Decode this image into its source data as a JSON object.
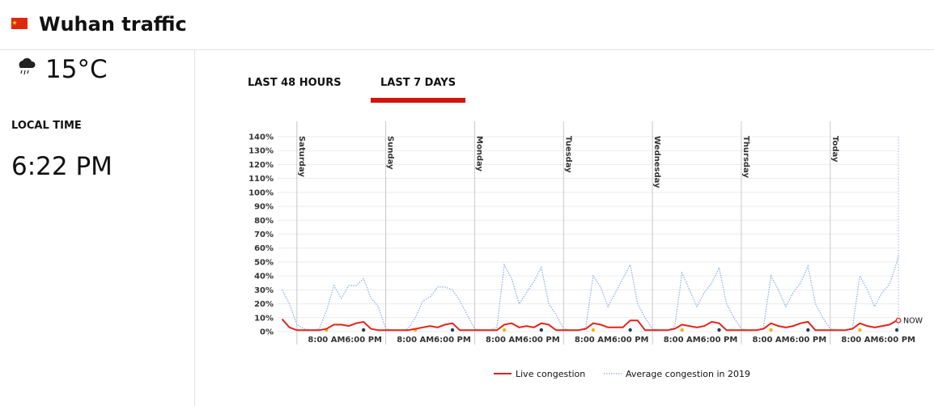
{
  "header": {
    "title": "Wuhan traffic"
  },
  "weather": {
    "temperature": "15°C"
  },
  "local_time": {
    "label": "LOCAL TIME",
    "value": "6:22 PM"
  },
  "tabs": [
    "LAST 48 HOURS",
    "LAST 7 DAYS"
  ],
  "chart_data": {
    "type": "line",
    "x": [
      -4,
      -2,
      0,
      2,
      4,
      6,
      8,
      10,
      12,
      14,
      16,
      18,
      20,
      22,
      24,
      26,
      28,
      30,
      32,
      34,
      36,
      38,
      40,
      42,
      44,
      46,
      48,
      50,
      52,
      54,
      56,
      58,
      60,
      62,
      64,
      66,
      68,
      70,
      72,
      74,
      76,
      78,
      80,
      82,
      84,
      86,
      88,
      90,
      92,
      94,
      96,
      98,
      100,
      102,
      104,
      106,
      108,
      110,
      112,
      114,
      116,
      118,
      120,
      122,
      124,
      126,
      128,
      130,
      132,
      134,
      136,
      138,
      140,
      142,
      144,
      146,
      148,
      150,
      152,
      154,
      156,
      158,
      160,
      162,
      162.4
    ],
    "series": [
      {
        "name": "Live congestion",
        "color": "#e2231a",
        "style": "solid",
        "values": [
          9,
          3,
          1,
          1,
          1,
          1,
          2,
          5,
          5,
          4,
          6,
          7,
          2,
          1,
          1,
          1,
          1,
          1,
          2,
          3,
          4,
          3,
          5,
          6,
          1,
          1,
          1,
          1,
          1,
          1,
          5,
          6,
          3,
          4,
          3,
          6,
          5,
          1,
          1,
          1,
          1,
          2,
          6,
          5,
          3,
          3,
          3,
          8,
          8,
          1,
          1,
          1,
          1,
          2,
          5,
          4,
          3,
          4,
          7,
          6,
          1,
          1,
          1,
          1,
          1,
          2,
          6,
          4,
          3,
          4,
          6,
          7,
          1,
          1,
          1,
          1,
          1,
          2,
          6,
          4,
          3,
          4,
          5,
          8,
          8
        ]
      },
      {
        "name": "Average congestion in 2019",
        "color": "#8fb0e8",
        "style": "dotted",
        "values": [
          30,
          20,
          5,
          2,
          1,
          2,
          15,
          33,
          24,
          33,
          33,
          38,
          24,
          18,
          2,
          1,
          1,
          2,
          10,
          22,
          25,
          32,
          32,
          30,
          22,
          12,
          2,
          1,
          1,
          3,
          48,
          38,
          20,
          28,
          36,
          46,
          20,
          12,
          2,
          1,
          1,
          3,
          40,
          32,
          18,
          28,
          38,
          48,
          20,
          10,
          2,
          1,
          1,
          3,
          42,
          30,
          18,
          28,
          35,
          46,
          20,
          10,
          2,
          1,
          1,
          3,
          40,
          30,
          18,
          28,
          35,
          47,
          20,
          10,
          2,
          1,
          1,
          3,
          40,
          30,
          18,
          28,
          34,
          50,
          55
        ]
      }
    ],
    "xlim": [
      -5.2,
      162.4
    ],
    "xticks": [
      {
        "value": 8,
        "label": "8:00 AM"
      },
      {
        "value": 18,
        "label": "6:00 PM"
      },
      {
        "value": 32,
        "label": "8:00 AM"
      },
      {
        "value": 42,
        "label": "6:00 PM"
      },
      {
        "value": 56,
        "label": "8:00 AM"
      },
      {
        "value": 66,
        "label": "6:00 PM"
      },
      {
        "value": 80,
        "label": "8:00 AM"
      },
      {
        "value": 90,
        "label": "6:00 PM"
      },
      {
        "value": 104,
        "label": "8:00 AM"
      },
      {
        "value": 114,
        "label": "6:00 PM"
      },
      {
        "value": 128,
        "label": "8:00 AM"
      },
      {
        "value": 138,
        "label": "6:00 PM"
      },
      {
        "value": 152,
        "label": "8:00 AM"
      },
      {
        "value": 162,
        "label": "6:00 PM"
      }
    ],
    "ylim": [
      0,
      140
    ],
    "yticks": [
      {
        "value": 0,
        "label": "0%"
      },
      {
        "value": 10,
        "label": "10%"
      },
      {
        "value": 20,
        "label": "20%"
      },
      {
        "value": 30,
        "label": "30%"
      },
      {
        "value": 40,
        "label": "40%"
      },
      {
        "value": 50,
        "label": "50%"
      },
      {
        "value": 60,
        "label": "60%"
      },
      {
        "value": 70,
        "label": "70%"
      },
      {
        "value": 80,
        "label": "80%"
      },
      {
        "value": 90,
        "label": "90%"
      },
      {
        "value": 100,
        "label": "100%"
      },
      {
        "value": 110,
        "label": "110%"
      },
      {
        "value": 120,
        "label": "120%"
      },
      {
        "value": 130,
        "label": "130%"
      },
      {
        "value": 140,
        "label": "140%"
      }
    ],
    "days": [
      {
        "label": "Saturday",
        "x": 0
      },
      {
        "label": "Sunday",
        "x": 24
      },
      {
        "label": "Monday",
        "x": 48
      },
      {
        "label": "Tuesday",
        "x": 72
      },
      {
        "label": "Wednesday",
        "x": 96
      },
      {
        "label": "Thursday",
        "x": 120
      },
      {
        "label": "Today",
        "x": 144
      }
    ],
    "now_label": "NOW",
    "grid": true
  }
}
